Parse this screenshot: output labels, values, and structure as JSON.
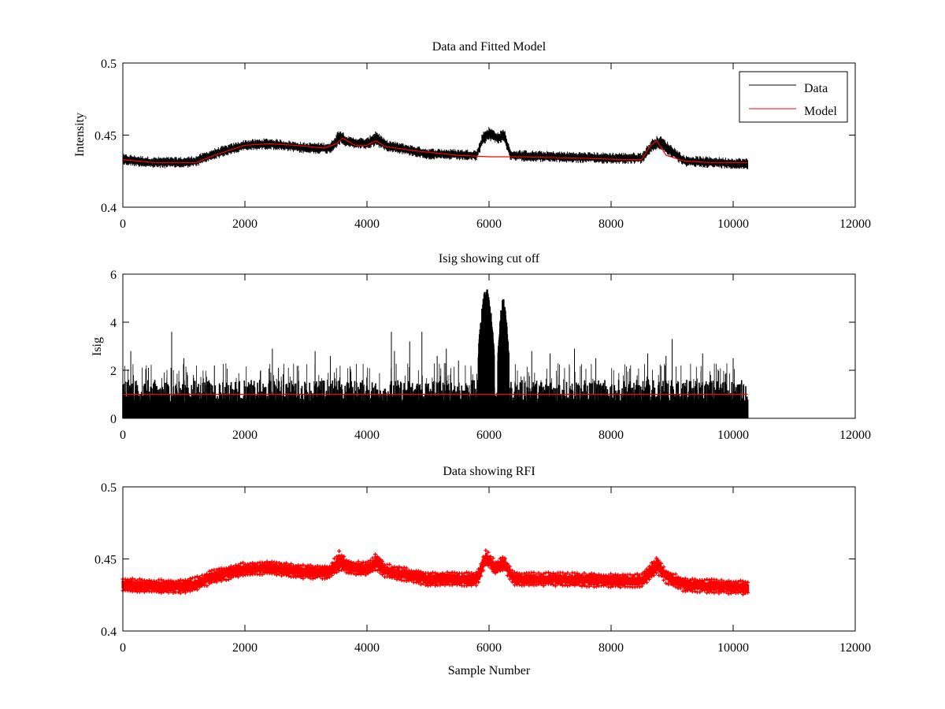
{
  "figure": {
    "background": "#ffffff"
  },
  "chart_data": [
    {
      "type": "line",
      "title": "Data and Fitted Model",
      "xlabel": "",
      "ylabel": "Intensity",
      "xlim": [
        0,
        12000
      ],
      "ylim": [
        0.4,
        0.5
      ],
      "xticks": [
        0,
        2000,
        4000,
        6000,
        8000,
        10000,
        12000
      ],
      "yticks": [
        0.4,
        0.45,
        0.5
      ],
      "xtick_labels": [
        "0",
        "2000",
        "4000",
        "6000",
        "8000",
        "10000",
        "12000"
      ],
      "ytick_labels": [
        "0.4",
        "0.45",
        "0.5"
      ],
      "legend": {
        "position": "top-right",
        "entries": [
          "Data",
          "Model"
        ]
      },
      "series": [
        {
          "name": "Data",
          "color": "#000000",
          "style": "noisy-band",
          "x": [
            0,
            500,
            1000,
            1200,
            1500,
            2000,
            2400,
            3000,
            3400,
            3550,
            3700,
            4000,
            4150,
            4300,
            5000,
            5800,
            5900,
            6000,
            6150,
            6250,
            6350,
            7000,
            8000,
            8500,
            8700,
            8800,
            9200,
            10240
          ],
          "center": [
            0.433,
            0.431,
            0.431,
            0.432,
            0.437,
            0.443,
            0.444,
            0.441,
            0.441,
            0.449,
            0.445,
            0.444,
            0.448,
            0.443,
            0.437,
            0.436,
            0.448,
            0.451,
            0.448,
            0.45,
            0.436,
            0.435,
            0.434,
            0.434,
            0.444,
            0.445,
            0.432,
            0.43
          ],
          "spread": [
            0.004,
            0.004,
            0.004,
            0.004,
            0.004,
            0.004,
            0.004,
            0.004,
            0.004,
            0.006,
            0.004,
            0.004,
            0.006,
            0.004,
            0.004,
            0.004,
            0.005,
            0.005,
            0.004,
            0.005,
            0.004,
            0.004,
            0.004,
            0.004,
            0.005,
            0.005,
            0.004,
            0.004
          ]
        },
        {
          "name": "Model",
          "color": "#ff0000",
          "style": "line",
          "x": [
            0,
            500,
            1200,
            1500,
            2000,
            2400,
            2800,
            3300,
            3500,
            3600,
            3800,
            4000,
            4150,
            4300,
            4800,
            5500,
            6000,
            6500,
            7500,
            8200,
            8500,
            8650,
            8750,
            8900,
            9200,
            9600,
            10240
          ],
          "y": [
            0.433,
            0.431,
            0.431,
            0.436,
            0.443,
            0.444,
            0.443,
            0.441,
            0.444,
            0.448,
            0.443,
            0.443,
            0.446,
            0.442,
            0.439,
            0.436,
            0.435,
            0.435,
            0.434,
            0.433,
            0.433,
            0.443,
            0.446,
            0.436,
            0.432,
            0.431,
            0.431
          ]
        }
      ]
    },
    {
      "type": "line",
      "title": "Isig showing cut off",
      "xlabel": "",
      "ylabel": "Isig",
      "xlim": [
        0,
        12000
      ],
      "ylim": [
        0,
        6
      ],
      "xticks": [
        0,
        2000,
        4000,
        6000,
        8000,
        10000,
        12000
      ],
      "yticks": [
        0,
        2,
        4,
        6
      ],
      "xtick_labels": [
        "0",
        "2000",
        "4000",
        "6000",
        "8000",
        "10000",
        "12000"
      ],
      "ytick_labels": [
        "0",
        "2",
        "4",
        "6"
      ],
      "series": [
        {
          "name": "Isig",
          "color": "#000000",
          "style": "spikes",
          "x_range": [
            0,
            10240
          ],
          "band_top": 1.0,
          "spikes": [
            [
              130,
              2.8
            ],
            [
              420,
              2.1
            ],
            [
              800,
              3.6
            ],
            [
              1000,
              2.5
            ],
            [
              1500,
              2.2
            ],
            [
              2450,
              2.9
            ],
            [
              2550,
              2.1
            ],
            [
              3150,
              2.8
            ],
            [
              3400,
              2.6
            ],
            [
              4400,
              3.6
            ],
            [
              4450,
              2.8
            ],
            [
              4700,
              3.2
            ],
            [
              4900,
              3.6
            ],
            [
              5150,
              2.6
            ],
            [
              5300,
              2.9
            ],
            [
              5500,
              2.4
            ],
            [
              6700,
              2.8
            ],
            [
              7000,
              2.7
            ],
            [
              7400,
              2.9
            ],
            [
              7750,
              2.5
            ],
            [
              8600,
              2.7
            ],
            [
              8900,
              2.6
            ],
            [
              9000,
              3.3
            ],
            [
              9500,
              2.7
            ],
            [
              10000,
              2.5
            ]
          ],
          "peaks": [
            {
              "x_start": 5830,
              "x_end": 6080,
              "max": 5.4
            },
            {
              "x_start": 6150,
              "x_end": 6320,
              "max": 5.0
            }
          ]
        },
        {
          "name": "Cut off",
          "color": "#ff0000",
          "style": "line",
          "x": [
            0,
            10240
          ],
          "y": [
            1.0,
            1.0
          ]
        }
      ]
    },
    {
      "type": "scatter",
      "title": "Data showing RFI",
      "xlabel": "Sample Number",
      "ylabel": "",
      "xlim": [
        0,
        12000
      ],
      "ylim": [
        0.4,
        0.5
      ],
      "xticks": [
        0,
        2000,
        4000,
        6000,
        8000,
        10000,
        12000
      ],
      "yticks": [
        0.4,
        0.45,
        0.5
      ],
      "xtick_labels": [
        "0",
        "2000",
        "4000",
        "6000",
        "8000",
        "10000",
        "12000"
      ],
      "ytick_labels": [
        "0.4",
        "0.45",
        "0.5"
      ],
      "series": [
        {
          "name": "RFI",
          "color": "#ff0000",
          "style": "marker-band",
          "x": [
            0,
            500,
            1000,
            1200,
            1500,
            2000,
            2400,
            3000,
            3400,
            3550,
            3700,
            4000,
            4150,
            4300,
            5000,
            5800,
            5950,
            6100,
            6250,
            6400,
            7000,
            8000,
            8500,
            8750,
            8900,
            9200,
            10240
          ],
          "center": [
            0.432,
            0.431,
            0.431,
            0.433,
            0.438,
            0.443,
            0.444,
            0.441,
            0.441,
            0.449,
            0.444,
            0.443,
            0.448,
            0.442,
            0.436,
            0.436,
            0.451,
            0.444,
            0.447,
            0.436,
            0.436,
            0.435,
            0.435,
            0.446,
            0.438,
            0.432,
            0.43
          ],
          "spread": [
            0.004,
            0.004,
            0.004,
            0.004,
            0.004,
            0.004,
            0.004,
            0.004,
            0.004,
            0.006,
            0.004,
            0.004,
            0.005,
            0.004,
            0.004,
            0.004,
            0.005,
            0.004,
            0.004,
            0.004,
            0.004,
            0.004,
            0.004,
            0.005,
            0.004,
            0.004,
            0.004
          ]
        }
      ]
    }
  ]
}
